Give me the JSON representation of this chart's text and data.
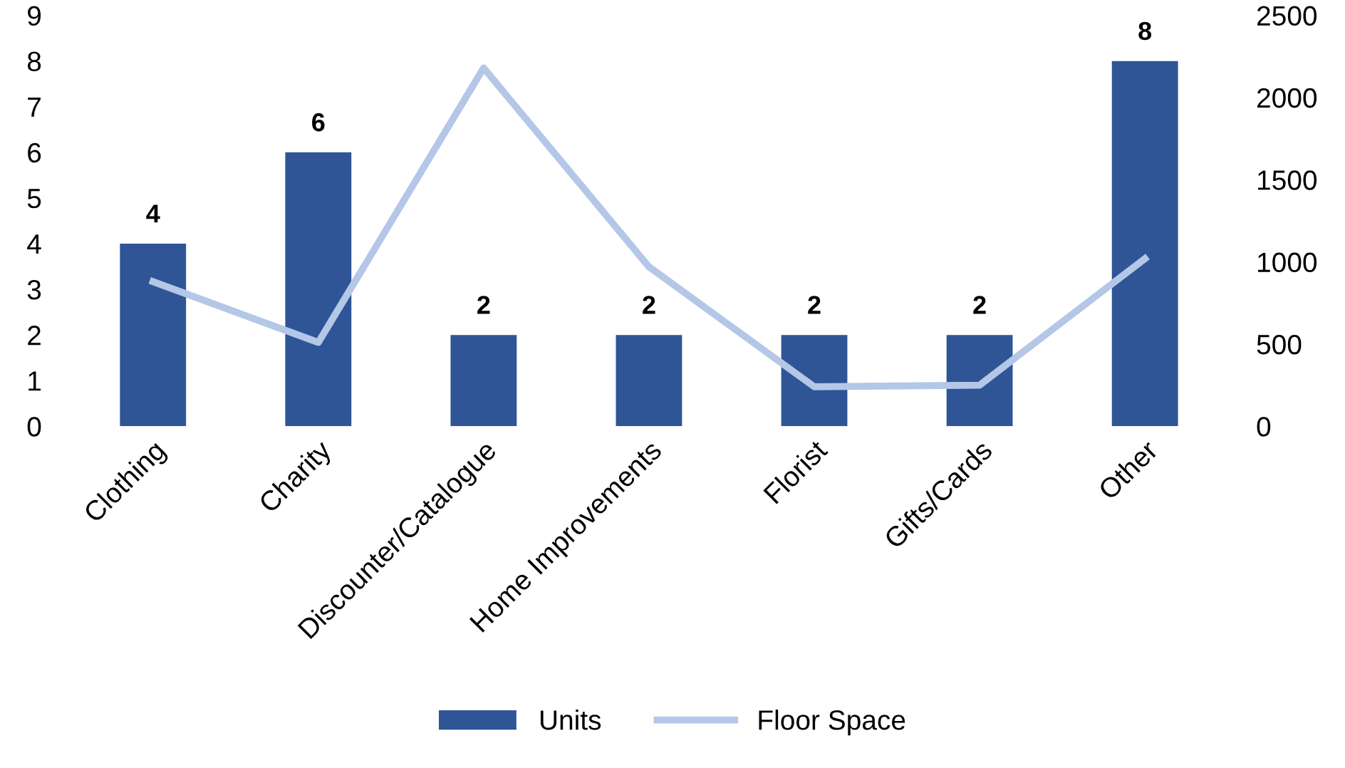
{
  "chart_data": {
    "type": "bar",
    "categories": [
      "Clothing",
      "Charity",
      "Discounter/Catalogue",
      "Home Improvements",
      "Florist",
      "Gifts/Cards",
      "Other"
    ],
    "series": [
      {
        "name": "Units",
        "color": "#2f5597",
        "values": [
          4,
          6,
          2,
          2,
          2,
          2,
          8
        ],
        "value_labels": [
          "4",
          "6",
          "2",
          "2",
          "2",
          "2",
          "8"
        ]
      },
      {
        "name": "Floor Space",
        "type": "line",
        "axis": "y2",
        "color": "#b4c7e7",
        "values": [
          880,
          510,
          2180,
          970,
          240,
          250,
          1020
        ]
      }
    ],
    "ylim": [
      0,
      9
    ],
    "yticks": [
      0,
      1,
      2,
      3,
      4,
      5,
      6,
      7,
      8,
      9
    ],
    "y2lim": [
      0,
      2500
    ],
    "y2ticks": [
      0,
      500,
      1000,
      1500,
      2000,
      2500
    ],
    "grid": false,
    "legend": "bottom",
    "marker": "none",
    "line_style": "solid"
  }
}
